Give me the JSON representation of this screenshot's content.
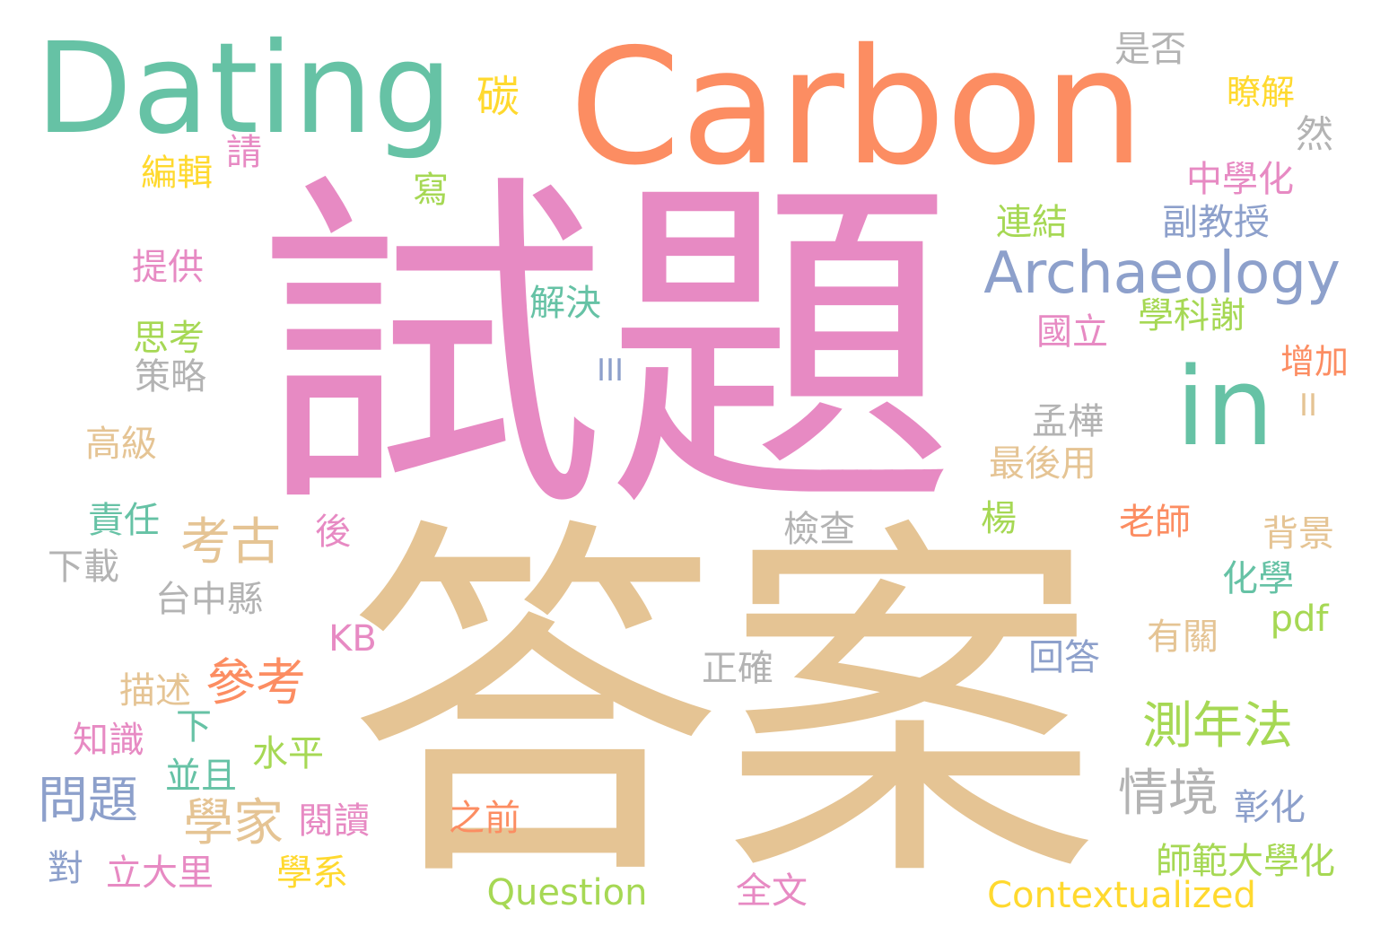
{
  "words": [
    {
      "text": "試題",
      "color": "#e78ac3"
    },
    {
      "text": "答案",
      "color": "#e5c494"
    },
    {
      "text": "Carbon",
      "color": "#fc8d62"
    },
    {
      "text": "Dating",
      "color": "#66c2a5"
    },
    {
      "text": "in",
      "color": "#66c2a5"
    },
    {
      "text": "Archaeology",
      "color": "#8da0cb"
    },
    {
      "text": "碳",
      "color": "#ffd92f"
    },
    {
      "text": "是否",
      "color": "#b3b3b3"
    },
    {
      "text": "瞭解",
      "color": "#ffd92f"
    },
    {
      "text": "然",
      "color": "#b3b3b3"
    },
    {
      "text": "中學化",
      "color": "#e78ac3"
    },
    {
      "text": "副教授",
      "color": "#8da0cb"
    },
    {
      "text": "連結",
      "color": "#a6d854"
    },
    {
      "text": "學科謝",
      "color": "#a6d854"
    },
    {
      "text": "國立",
      "color": "#e78ac3"
    },
    {
      "text": "增加",
      "color": "#fc8d62"
    },
    {
      "text": "II",
      "color": "#e5c494"
    },
    {
      "text": "孟樺",
      "color": "#b3b3b3"
    },
    {
      "text": "最後用",
      "color": "#e5c494"
    },
    {
      "text": "楊",
      "color": "#a6d854"
    },
    {
      "text": "老師",
      "color": "#fc8d62"
    },
    {
      "text": "背景",
      "color": "#e5c494"
    },
    {
      "text": "化學",
      "color": "#66c2a5"
    },
    {
      "text": "pdf",
      "color": "#a6d854"
    },
    {
      "text": "有關",
      "color": "#e5c494"
    },
    {
      "text": "回答",
      "color": "#8da0cb"
    },
    {
      "text": "測年法",
      "color": "#a6d854"
    },
    {
      "text": "情境",
      "color": "#b3b3b3"
    },
    {
      "text": "彰化",
      "color": "#8da0cb"
    },
    {
      "text": "師範大學化",
      "color": "#a6d854"
    },
    {
      "text": "Contextualized",
      "color": "#ffd92f"
    },
    {
      "text": "請",
      "color": "#e78ac3"
    },
    {
      "text": "編輯",
      "color": "#ffd92f"
    },
    {
      "text": "寫",
      "color": "#a6d854"
    },
    {
      "text": "提供",
      "color": "#e78ac3"
    },
    {
      "text": "解決",
      "color": "#66c2a5"
    },
    {
      "text": "思考",
      "color": "#a6d854"
    },
    {
      "text": "策略",
      "color": "#b3b3b3"
    },
    {
      "text": "III",
      "color": "#8da0cb"
    },
    {
      "text": "高級",
      "color": "#e5c494"
    },
    {
      "text": "考古",
      "color": "#e5c494"
    },
    {
      "text": "責任",
      "color": "#66c2a5"
    },
    {
      "text": "後",
      "color": "#e78ac3"
    },
    {
      "text": "下載",
      "color": "#b3b3b3"
    },
    {
      "text": "台中縣",
      "color": "#b3b3b3"
    },
    {
      "text": "檢查",
      "color": "#b3b3b3"
    },
    {
      "text": "KB",
      "color": "#e78ac3"
    },
    {
      "text": "正確",
      "color": "#b3b3b3"
    },
    {
      "text": "描述",
      "color": "#e5c494"
    },
    {
      "text": "參考",
      "color": "#fc8d62"
    },
    {
      "text": "下",
      "color": "#66c2a5"
    },
    {
      "text": "知識",
      "color": "#e78ac3"
    },
    {
      "text": "水平",
      "color": "#a6d854"
    },
    {
      "text": "並且",
      "color": "#66c2a5"
    },
    {
      "text": "問題",
      "color": "#8da0cb"
    },
    {
      "text": "學家",
      "color": "#e5c494"
    },
    {
      "text": "閱讀",
      "color": "#e78ac3"
    },
    {
      "text": "之前",
      "color": "#fc8d62"
    },
    {
      "text": "對",
      "color": "#8da0cb"
    },
    {
      "text": "立大里",
      "color": "#e78ac3"
    },
    {
      "text": "學系",
      "color": "#ffd92f"
    },
    {
      "text": "Question",
      "color": "#a6d854"
    },
    {
      "text": "全文",
      "color": "#e78ac3"
    }
  ]
}
